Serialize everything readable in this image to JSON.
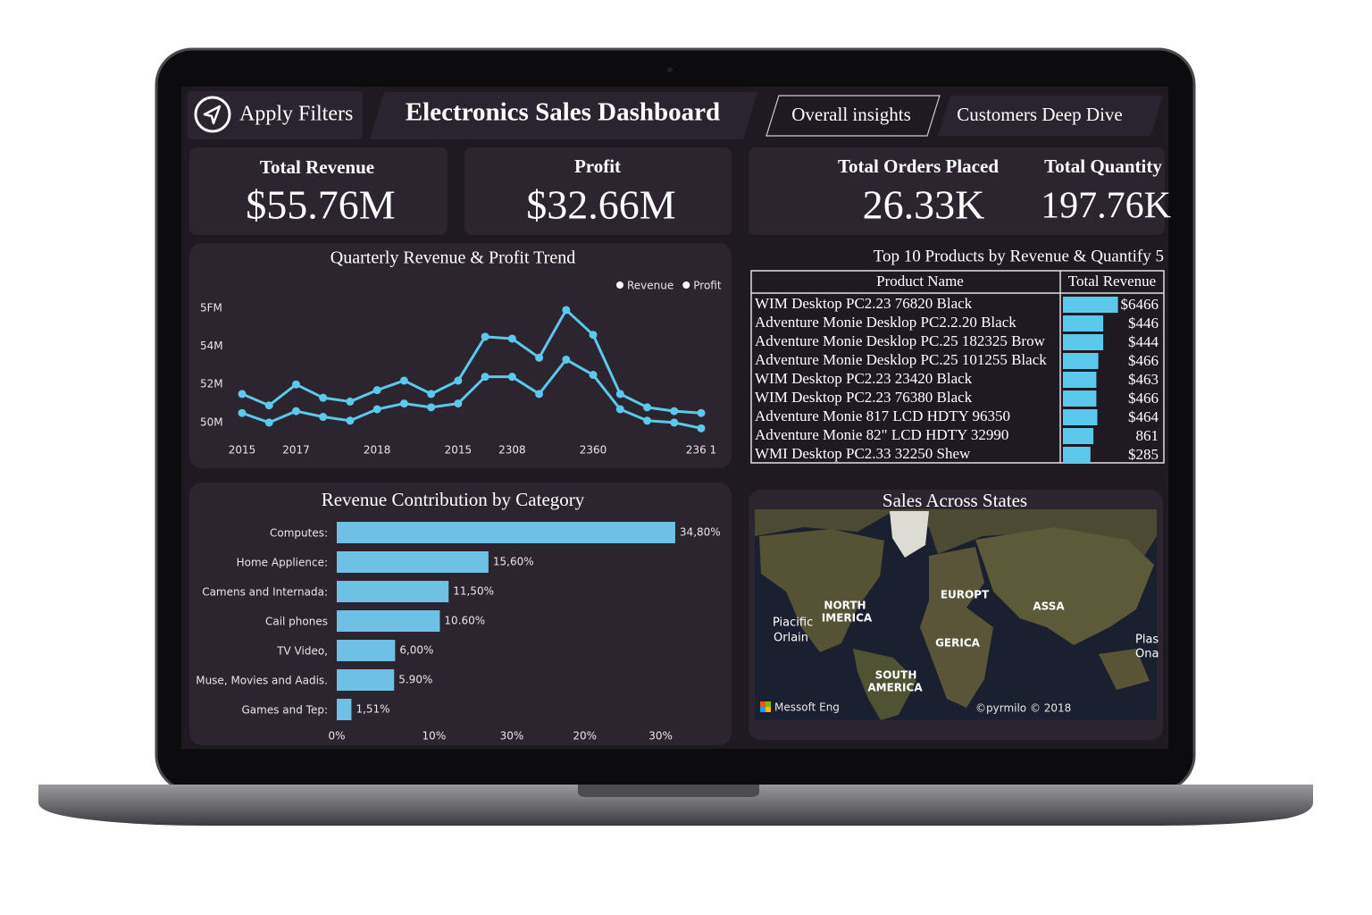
{
  "nav": {
    "filter_button": "Apply Filters",
    "title": "Electronics Sales Dashboard",
    "tabs": [
      "Overall insights",
      "Customers Deep Dive"
    ]
  },
  "kpis": [
    {
      "label": "Total Revenue",
      "value": "$55.76M"
    },
    {
      "label": "Profit",
      "value": "$32.66M"
    },
    {
      "label": "Total Orders Placed",
      "value": "26.33K"
    },
    {
      "label": "Total Quantity",
      "value": "197.76K"
    }
  ],
  "chart_data": [
    {
      "type": "line",
      "title": "Quarterly Revenue & Profit Trend",
      "x": [
        "2015",
        null,
        "2017",
        null,
        null,
        "2018",
        null,
        null,
        "2015",
        null,
        "2308",
        null,
        null,
        "2360",
        null,
        null,
        null,
        "236 1"
      ],
      "series": [
        {
          "name": "Revenue",
          "color": "#5bc8ec",
          "values": [
            51.5,
            50.9,
            52.0,
            51.3,
            51.1,
            51.7,
            52.2,
            51.5,
            52.2,
            54.5,
            54.4,
            53.4,
            55.9,
            54.6,
            51.5,
            50.8,
            50.6,
            50.5
          ]
        },
        {
          "name": "Profit",
          "color": "#5bc8ec",
          "values": [
            50.5,
            50.0,
            50.6,
            50.3,
            50.1,
            50.7,
            51.0,
            50.8,
            51.0,
            52.4,
            52.4,
            51.5,
            53.3,
            52.5,
            50.7,
            50.1,
            50.0,
            49.7
          ]
        }
      ],
      "ylim": [
        49.2,
        56.6
      ],
      "yticks": [
        {
          "value": 50,
          "label": "50M"
        },
        {
          "value": 52,
          "label": "52M"
        },
        {
          "value": 54,
          "label": "54M"
        },
        {
          "value": 56,
          "label": "5FM"
        }
      ],
      "legend": "top-right",
      "legend_marker_color": "#ffffff"
    },
    {
      "type": "bar",
      "orientation": "horizontal",
      "title": "Revenue Contribution by Category",
      "categories": [
        "Computes:",
        "Home Applience:",
        "Camens and Internada:",
        "Cail phones",
        "TV Video,",
        "Muse, Movies and Aadis.",
        "Games and Tep:"
      ],
      "values": [
        34.8,
        15.6,
        11.5,
        10.6,
        6.0,
        5.9,
        1.51
      ],
      "value_labels": [
        "34,80%",
        "15,60%",
        "11,50%",
        "10.60%",
        "6,00%",
        "5.90%",
        "1,51%"
      ],
      "color": "#6ec1e4",
      "xlim": [
        0,
        36
      ],
      "xticks": [
        {
          "value": 0,
          "label": "0%"
        },
        {
          "value": 10,
          "label": "10%"
        },
        {
          "value": 18,
          "label": "30%"
        },
        {
          "value": 25.5,
          "label": "20%"
        },
        {
          "value": 33.3,
          "label": "30%"
        }
      ]
    }
  ],
  "top_products": {
    "title": "Top 10 Products by Revenue & Quantify 5",
    "columns": [
      "Product Name",
      "Total Revenue"
    ],
    "rows": [
      {
        "name": "WIM Desktop PC2.23 76820 Black",
        "revenue": "$6466"
      },
      {
        "name": "Adventure Monie Desklop PC2.2.20 Black",
        "revenue": "$446"
      },
      {
        "name": "Adventure Monie Desklop PC.25 182325 Brow",
        "revenue": "$444"
      },
      {
        "name": "Adventure Monie Desklop PC.25 101255 Black",
        "revenue": "$466"
      },
      {
        "name": "WIM Desktop PC2.23 23420 Black",
        "revenue": "$463"
      },
      {
        "name": "WIM Desktop PC2.23 76380 Black",
        "revenue": "$466"
      },
      {
        "name": "Adventure Monie 817 LCD HDTY 96350",
        "revenue": "$464"
      },
      {
        "name": "Adventure Monie 82\" LCD HDTY 32990",
        "revenue": "861"
      },
      {
        "name": "WMI Desktop PC2.33 32250 Shew",
        "revenue": "$285"
      }
    ],
    "bar_values": [
      56,
      41,
      41,
      36,
      34,
      34,
      35,
      31,
      28
    ],
    "bar_lim": [
      0,
      100
    ],
    "bar_color": "#5bc8ec"
  },
  "map": {
    "title": "Sales Across States",
    "labels": [
      "NORTH",
      "IMERICA",
      "EUROPT",
      "ASSA",
      "GERICA",
      "SOUTH",
      "AMERICA",
      "Piacific",
      "Orlain",
      "Plas",
      "Ona"
    ],
    "attribution": "Messoft Eng",
    "copyright": "©pyrmilo © 2018"
  }
}
